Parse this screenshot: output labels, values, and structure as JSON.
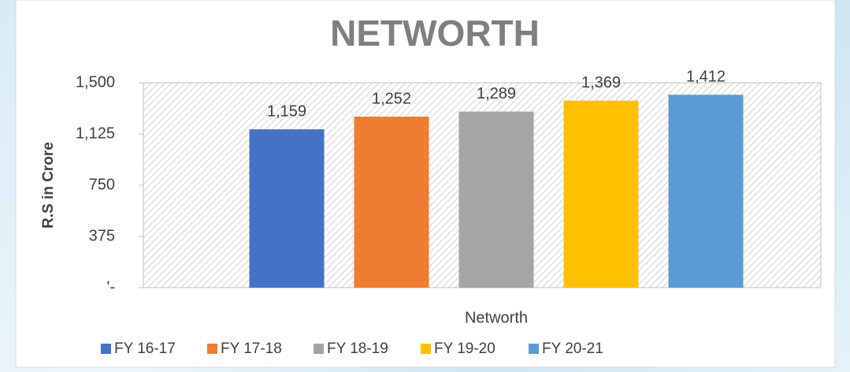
{
  "chart_data": {
    "type": "bar",
    "title": "NETWORTH",
    "xlabel": "Networth",
    "ylabel": "R.S in Crore",
    "categories": [
      "Networth"
    ],
    "series": [
      {
        "name": "FY 16-17",
        "color": "#4472c4",
        "values": [
          1159
        ],
        "value_labels": [
          "1,159"
        ]
      },
      {
        "name": "FY 17-18",
        "color": "#ed7d31",
        "values": [
          1252
        ],
        "value_labels": [
          "1,252"
        ]
      },
      {
        "name": "FY 18-19",
        "color": "#a5a5a5",
        "values": [
          1289
        ],
        "value_labels": [
          "1,289"
        ]
      },
      {
        "name": "FY 19-20",
        "color": "#ffc000",
        "values": [
          1369
        ],
        "value_labels": [
          "1,369"
        ]
      },
      {
        "name": "FY 20-21",
        "color": "#5b9bd5",
        "values": [
          1412
        ],
        "value_labels": [
          "1,412"
        ]
      }
    ],
    "ylim": [
      0,
      1500
    ],
    "yticks": [
      {
        "value": 0,
        "label": "'-"
      },
      375,
      750,
      {
        "value": 1125,
        "label": "1,125"
      },
      {
        "value": 1500,
        "label": "1,500"
      }
    ],
    "legend": "bottom"
  }
}
